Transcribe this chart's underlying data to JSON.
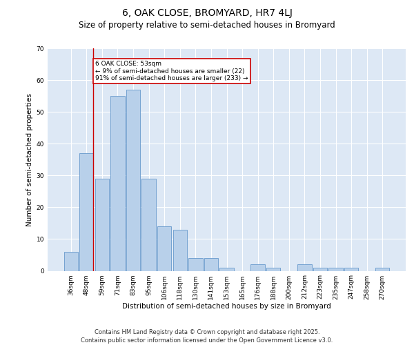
{
  "title": "6, OAK CLOSE, BROMYARD, HR7 4LJ",
  "subtitle": "Size of property relative to semi-detached houses in Bromyard",
  "xlabel": "Distribution of semi-detached houses by size in Bromyard",
  "ylabel": "Number of semi-detached properties",
  "bar_labels": [
    "36sqm",
    "48sqm",
    "59sqm",
    "71sqm",
    "83sqm",
    "95sqm",
    "106sqm",
    "118sqm",
    "130sqm",
    "141sqm",
    "153sqm",
    "165sqm",
    "176sqm",
    "188sqm",
    "200sqm",
    "212sqm",
    "223sqm",
    "235sqm",
    "247sqm",
    "258sqm",
    "270sqm"
  ],
  "bar_values": [
    6,
    37,
    29,
    55,
    57,
    29,
    14,
    13,
    4,
    4,
    1,
    0,
    2,
    1,
    0,
    2,
    1,
    1,
    1,
    0,
    1
  ],
  "bar_color": "#b8d0ea",
  "bar_edge_color": "#6699cc",
  "background_color": "#dde8f5",
  "grid_color": "#ffffff",
  "red_line_x": 1.42,
  "annotation_text": "6 OAK CLOSE: 53sqm\n← 9% of semi-detached houses are smaller (22)\n91% of semi-detached houses are larger (233) →",
  "annotation_box_color": "#ffffff",
  "annotation_box_edge": "#cc0000",
  "red_line_color": "#cc0000",
  "ylim": [
    0,
    70
  ],
  "yticks": [
    0,
    10,
    20,
    30,
    40,
    50,
    60,
    70
  ],
  "footer_line1": "Contains HM Land Registry data © Crown copyright and database right 2025.",
  "footer_line2": "Contains public sector information licensed under the Open Government Licence v3.0.",
  "title_fontsize": 10,
  "subtitle_fontsize": 8.5,
  "axis_label_fontsize": 7.5,
  "tick_fontsize": 6.5,
  "annotation_fontsize": 6.5,
  "footer_fontsize": 6
}
